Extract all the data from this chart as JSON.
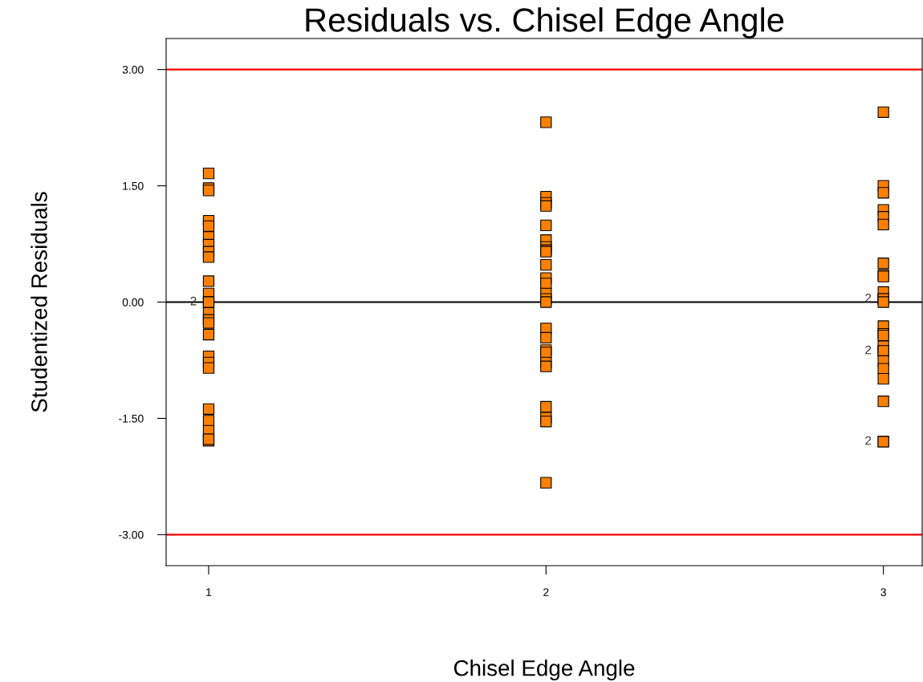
{
  "chart_data": {
    "type": "scatter",
    "title": "Residuals vs. Chisel Edge Angle",
    "xlabel": "Chisel Edge Angle",
    "ylabel": "Studentized Residuals",
    "categories": [
      "1",
      "2",
      "3"
    ],
    "series": [
      {
        "color": "#ff8000",
        "x": [
          "1",
          "1",
          "1",
          "1",
          "1",
          "1",
          "1",
          "1",
          "1",
          "1",
          "1",
          "1",
          "1",
          "1",
          "1",
          "1",
          "1",
          "1",
          "1",
          "1",
          "1",
          "1",
          "1",
          "1",
          "1",
          "2",
          "2",
          "2",
          "2",
          "2",
          "2",
          "2",
          "2",
          "2",
          "2",
          "2",
          "2",
          "2",
          "2",
          "2",
          "2",
          "2",
          "2",
          "2",
          "2",
          "2",
          "2",
          "2",
          "2",
          "2",
          "3",
          "3",
          "3",
          "3",
          "3",
          "3",
          "3",
          "3",
          "3",
          "3",
          "3",
          "3",
          "3",
          "3",
          "3",
          "3",
          "3",
          "3",
          "3",
          "3",
          "3",
          "3",
          "3",
          "3",
          "3"
        ],
        "values": [
          1.66,
          1.47,
          1.44,
          1.05,
          0.98,
          0.84,
          0.74,
          0.65,
          0.58,
          0.27,
          0.11,
          0.0,
          0.0,
          -0.14,
          -0.23,
          -0.27,
          -0.42,
          -0.7,
          -0.78,
          -0.85,
          -1.38,
          -1.53,
          -1.66,
          -1.79,
          -1.77,
          2.32,
          1.36,
          1.28,
          1.24,
          0.99,
          0.8,
          0.71,
          0.67,
          0.65,
          0.48,
          0.31,
          0.24,
          0.11,
          0.04,
          0.0,
          -0.34,
          -0.46,
          -0.62,
          -0.65,
          -0.78,
          -0.83,
          -1.35,
          -1.49,
          -1.54,
          -2.33,
          2.45,
          1.5,
          1.41,
          1.19,
          1.1,
          1.0,
          0.5,
          0.35,
          0.33,
          0.13,
          0.04,
          0.04,
          0.0,
          -0.31,
          -0.41,
          -0.43,
          -0.57,
          -0.63,
          -0.63,
          -0.76,
          -0.86,
          -0.99,
          -1.28,
          -1.8,
          -1.8
        ]
      }
    ],
    "marker": "square",
    "ylim": [
      -3.4,
      3.4
    ],
    "yticks": [
      {
        "value": -3,
        "label": "-3.00"
      },
      {
        "value": -1.5,
        "label": "-1.50"
      },
      {
        "value": 0,
        "label": "0.00"
      },
      {
        "value": 1.5,
        "label": "1.50"
      },
      {
        "value": 3,
        "label": "3.00"
      }
    ],
    "ref_lines": [
      {
        "axis": "y",
        "value": 3,
        "color": "#ff0000"
      },
      {
        "axis": "y",
        "value": -3,
        "color": "#ff0000"
      },
      {
        "axis": "y",
        "value": 0,
        "color": "#000000"
      }
    ],
    "annotations": [
      {
        "text": "2",
        "x": "1",
        "y": 0.0
      },
      {
        "text": "2",
        "x": "3",
        "y": 0.04
      },
      {
        "text": "2",
        "x": "3",
        "y": -0.63
      },
      {
        "text": "2",
        "x": "3",
        "y": -1.8
      }
    ],
    "grid": false,
    "legend": false
  }
}
